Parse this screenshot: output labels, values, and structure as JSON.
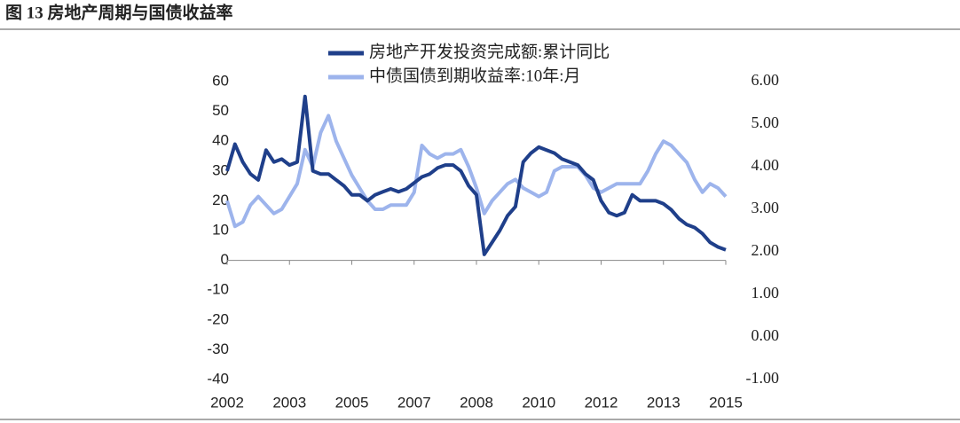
{
  "chart_data": {
    "type": "line",
    "title": "图 13  房地产周期与国债收益率",
    "categories": [
      "2002",
      null,
      null,
      null,
      null,
      null,
      null,
      null,
      "2003",
      null,
      null,
      null,
      null,
      null,
      null,
      null,
      "2005",
      null,
      null,
      null,
      null,
      null,
      null,
      null,
      "2007",
      null,
      null,
      null,
      null,
      null,
      null,
      null,
      "2008",
      null,
      null,
      null,
      null,
      null,
      null,
      null,
      "2010",
      null,
      null,
      null,
      null,
      null,
      null,
      null,
      "2012",
      null,
      null,
      null,
      null,
      null,
      null,
      null,
      "2013",
      null,
      null,
      null,
      null,
      null,
      null,
      null,
      "2015"
    ],
    "series": [
      {
        "name": "房地产开发投资完成额:累计同比",
        "color": "#1f3f8a",
        "values": [
          30,
          39,
          33,
          29,
          27,
          37,
          33,
          34,
          32,
          33,
          55,
          30,
          29,
          29,
          27,
          25,
          22,
          22,
          20,
          22,
          23,
          24,
          23,
          24,
          26,
          28,
          29,
          31,
          32,
          32,
          30,
          25,
          22,
          2,
          6,
          10,
          15,
          18,
          33,
          36,
          38,
          37,
          36,
          34,
          33,
          32,
          29,
          27,
          20,
          16,
          15,
          16,
          22,
          20,
          20,
          20,
          19,
          17,
          14,
          12,
          11,
          9,
          6,
          4.5,
          3.5
        ]
      },
      {
        "name": "中债国债到期收益率:10年:月",
        "color": "#9db4ec",
        "axis": "y2",
        "values": [
          3.2,
          2.6,
          2.7,
          3.1,
          3.3,
          3.1,
          2.9,
          3.0,
          3.3,
          3.6,
          4.4,
          4.0,
          4.8,
          5.2,
          4.6,
          4.2,
          3.8,
          3.5,
          3.2,
          3.0,
          3.0,
          3.1,
          3.1,
          3.1,
          3.4,
          4.5,
          4.3,
          4.2,
          4.3,
          4.3,
          4.4,
          4.0,
          3.5,
          2.9,
          3.2,
          3.4,
          3.6,
          3.7,
          3.5,
          3.4,
          3.3,
          3.4,
          3.9,
          4.0,
          4.0,
          4.0,
          3.8,
          3.5,
          3.4,
          3.5,
          3.6,
          3.6,
          3.6,
          3.6,
          3.9,
          4.3,
          4.6,
          4.5,
          4.3,
          4.1,
          3.7,
          3.4,
          3.6,
          3.5,
          3.3
        ]
      }
    ],
    "ylim": [
      -40,
      60
    ],
    "yticks": [
      60,
      50,
      40,
      30,
      20,
      10,
      0,
      -10,
      -20,
      -30,
      -40
    ],
    "y2lim": [
      -1,
      6
    ],
    "y2ticks": [
      {
        "value": 6,
        "label": "6.00"
      },
      {
        "value": 5,
        "label": "5.00"
      },
      {
        "value": 4,
        "label": "4.00"
      },
      {
        "value": 3,
        "label": "3.00"
      },
      {
        "value": 2,
        "label": "2.00"
      },
      {
        "value": 1,
        "label": "1.00"
      },
      {
        "value": 0,
        "label": "0.00"
      },
      {
        "value": -1,
        "label": "-1.00"
      }
    ],
    "legend": "top"
  }
}
